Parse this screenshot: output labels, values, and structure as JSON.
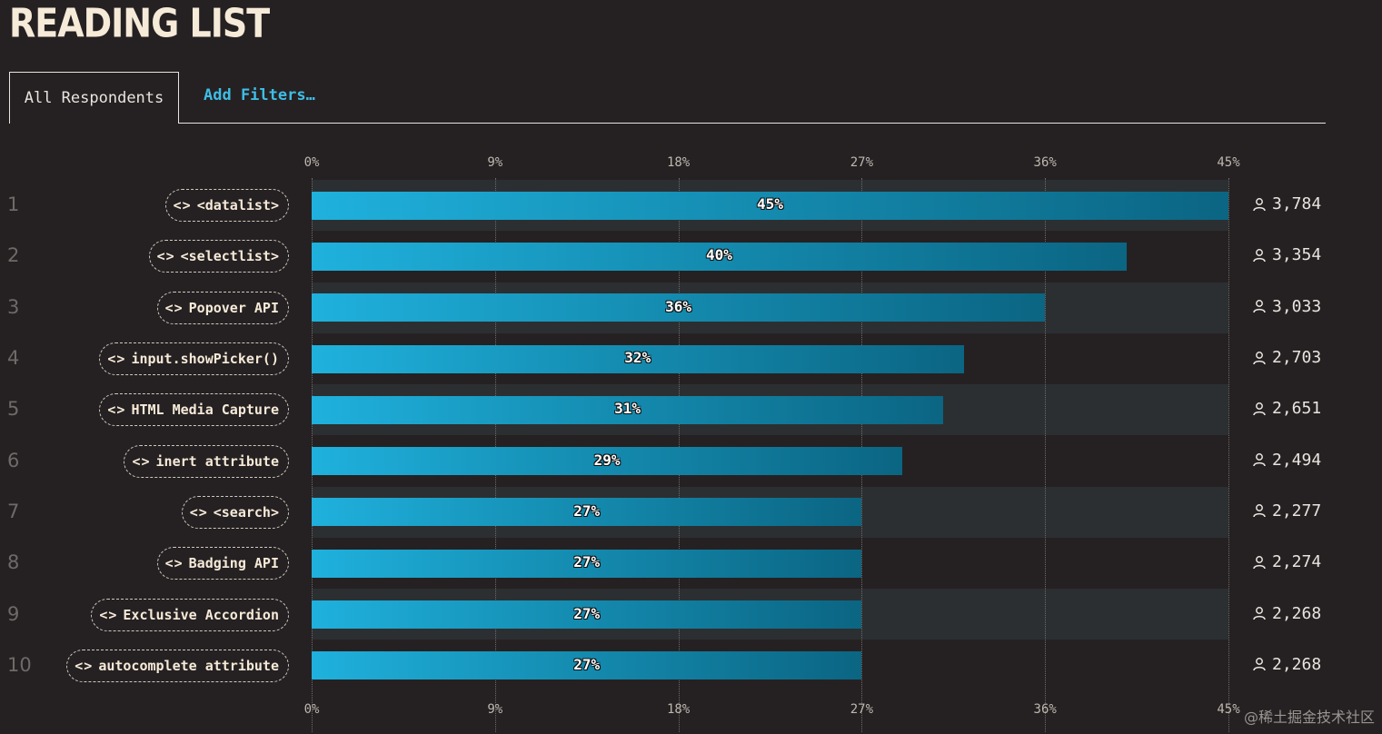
{
  "title": "READING LIST",
  "tabs": {
    "active": "All Respondents",
    "filter": "Add Filters…"
  },
  "watermark": "@稀土掘金技术社区",
  "chart_data": {
    "type": "bar",
    "orientation": "horizontal",
    "xlim": [
      0,
      45
    ],
    "ticks": [
      "0%",
      "9%",
      "18%",
      "27%",
      "36%",
      "45%"
    ],
    "grid": true,
    "rows": [
      {
        "rank": "1",
        "label": "<datalist>",
        "value": 45,
        "value_label": "45%",
        "count": "3,784"
      },
      {
        "rank": "2",
        "label": "<selectlist>",
        "value": 40,
        "value_label": "40%",
        "count": "3,354"
      },
      {
        "rank": "3",
        "label": "Popover API",
        "value": 36,
        "value_label": "36%",
        "count": "3,033"
      },
      {
        "rank": "4",
        "label": "input.showPicker()",
        "value": 32,
        "value_label": "32%",
        "count": "2,703"
      },
      {
        "rank": "5",
        "label": "HTML Media Capture",
        "value": 31,
        "value_label": "31%",
        "count": "2,651"
      },
      {
        "rank": "6",
        "label": "inert attribute",
        "value": 29,
        "value_label": "29%",
        "count": "2,494"
      },
      {
        "rank": "7",
        "label": "<search>",
        "value": 27,
        "value_label": "27%",
        "count": "2,277"
      },
      {
        "rank": "8",
        "label": "Badging API",
        "value": 27,
        "value_label": "27%",
        "count": "2,274"
      },
      {
        "rank": "9",
        "label": "Exclusive Accordion",
        "value": 27,
        "value_label": "27%",
        "count": "2,268"
      },
      {
        "rank": "10",
        "label": "autocomplete attribute",
        "value": 27,
        "value_label": "27%",
        "count": "2,268"
      }
    ],
    "colors": {
      "bar_start": "#1fb1dd",
      "bar_end": "#0b6583",
      "band": "#2c2f31"
    }
  }
}
